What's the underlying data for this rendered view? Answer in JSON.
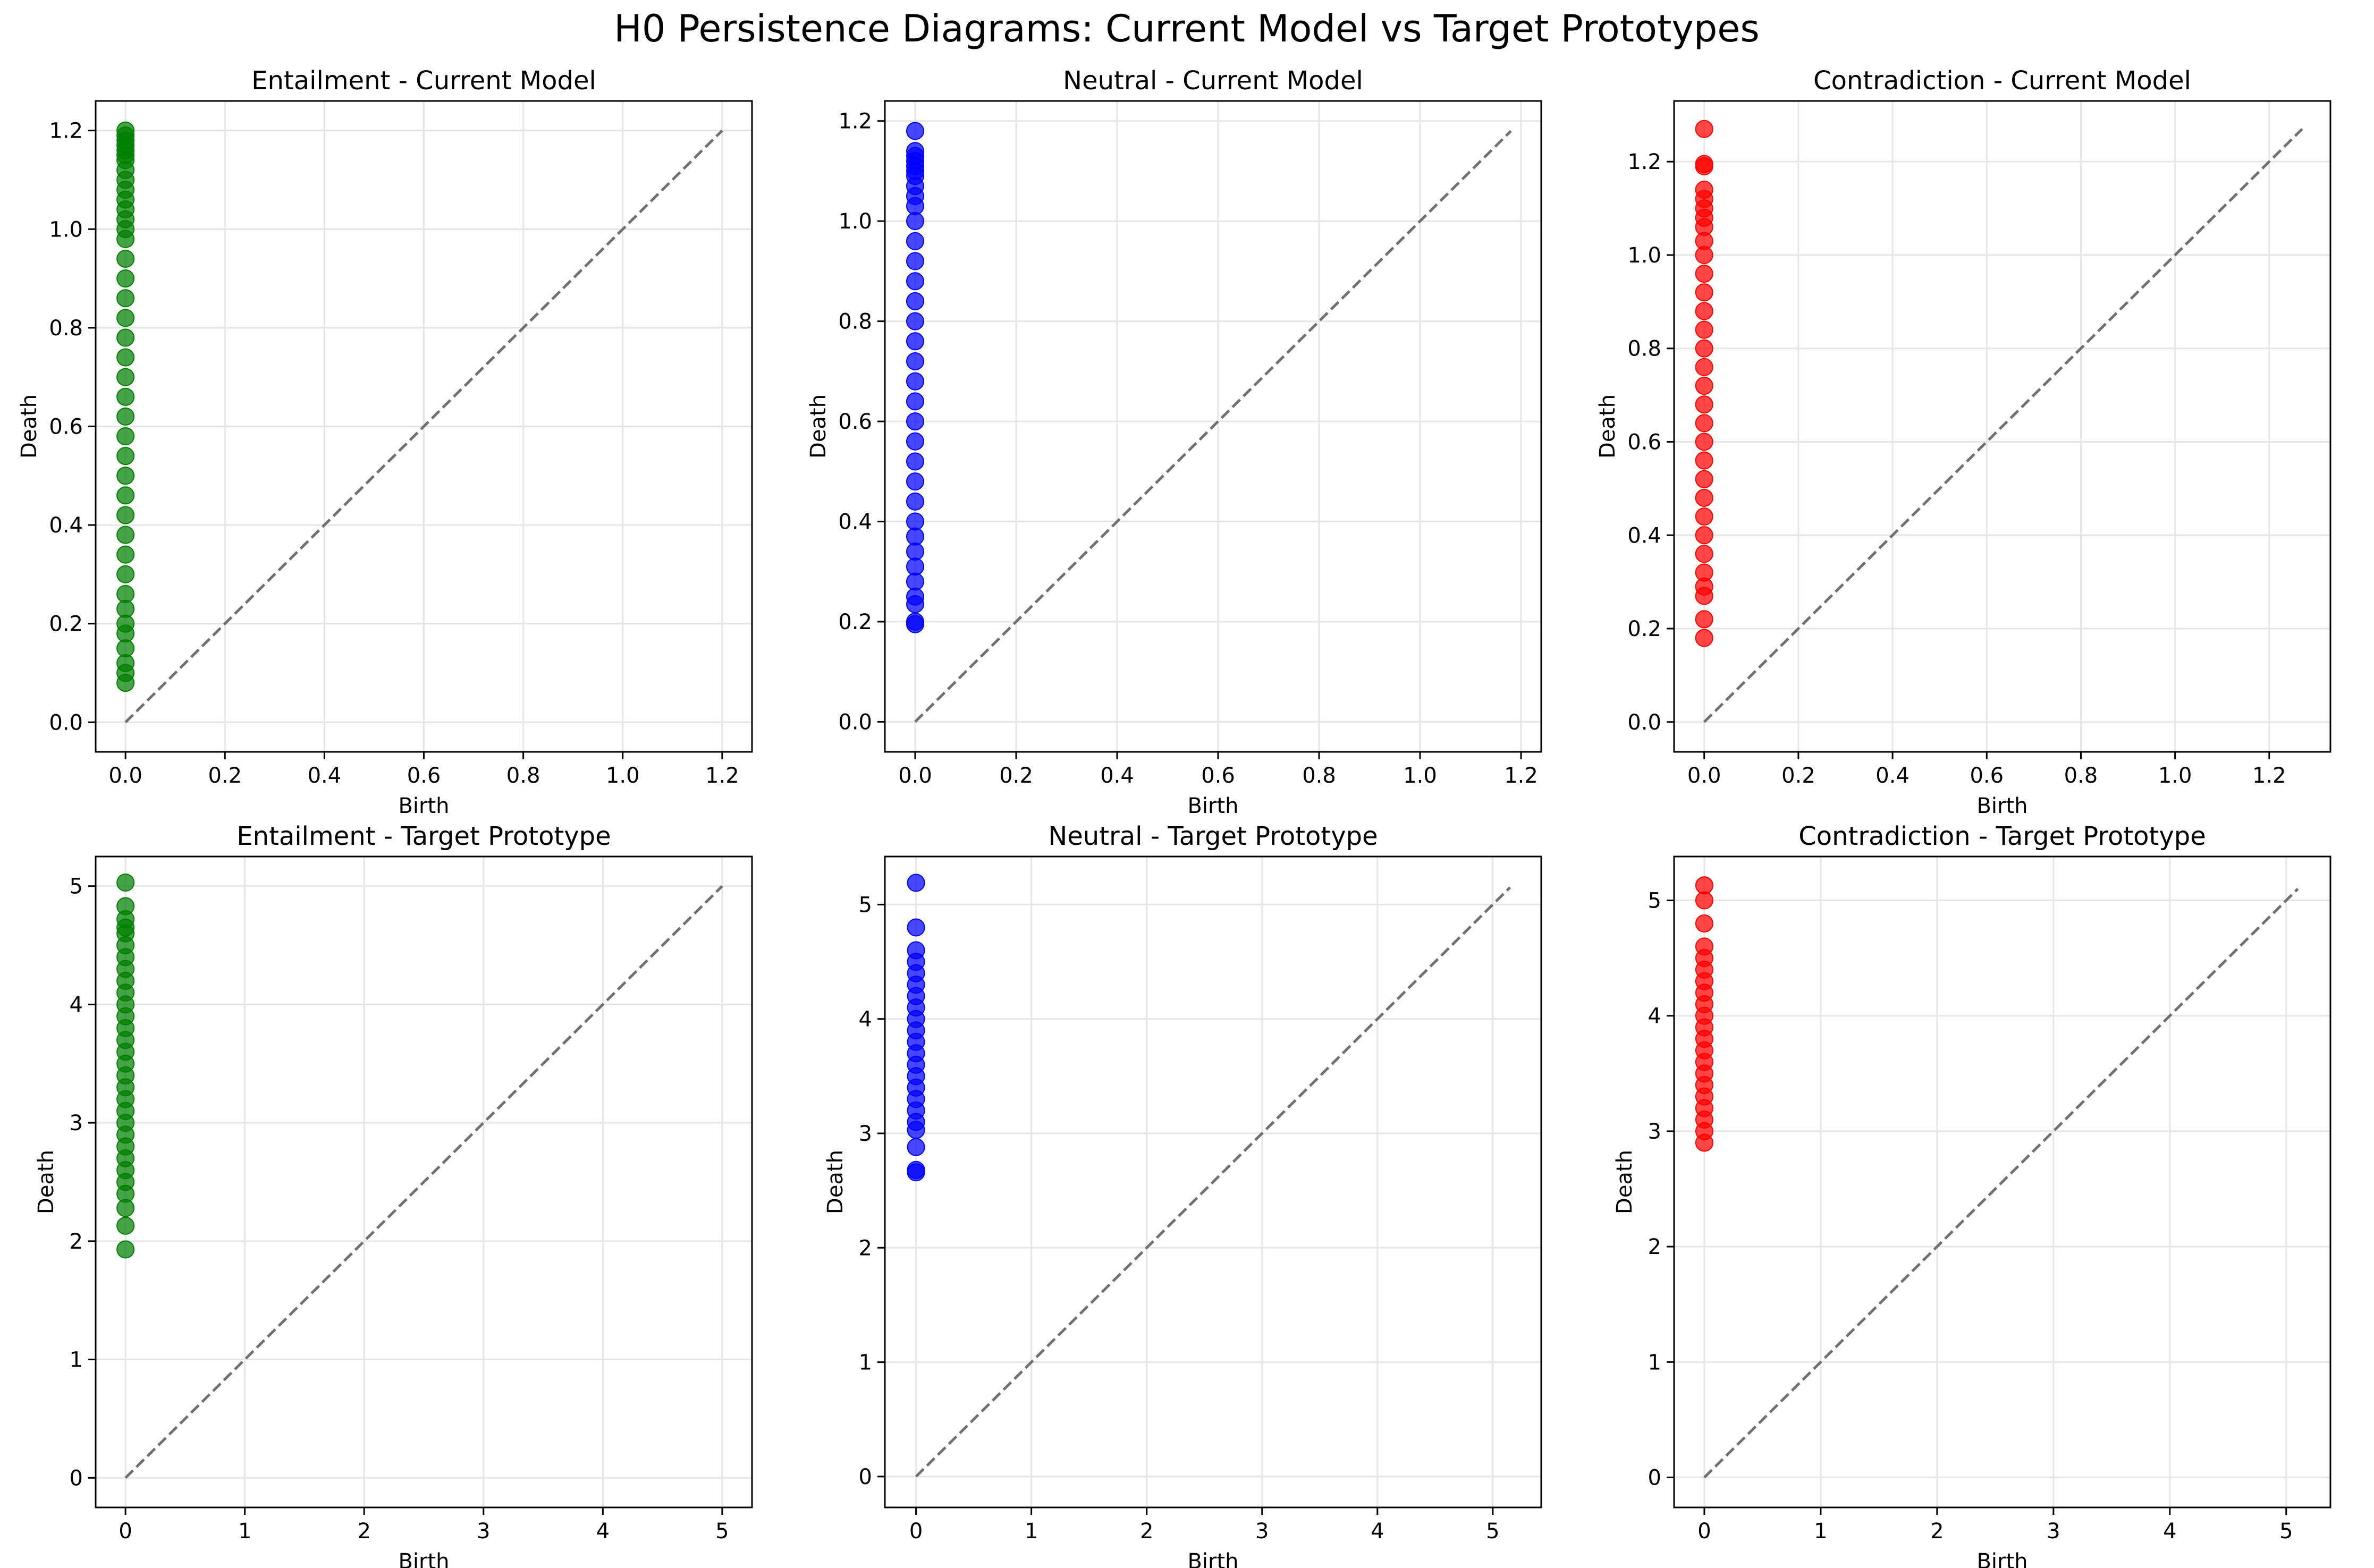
{
  "figure_title": "H0 Persistence Diagrams: Current Model vs Target Prototypes",
  "colors": {
    "entailment": "#008000",
    "neutral": "#0000ff",
    "contradiction": "#ff0000",
    "diagonal": "#707070",
    "grid": "#e6e6e6"
  },
  "chart_data": [
    {
      "type": "scatter",
      "title": "Entailment - Current Model",
      "xlabel": "Birth",
      "ylabel": "Death",
      "color_key": "entailment",
      "xlim": [
        -0.06,
        1.26
      ],
      "ylim": [
        -0.06,
        1.26
      ],
      "xticks": [
        0.0,
        0.2,
        0.4,
        0.6,
        0.8,
        1.0,
        1.2
      ],
      "yticks": [
        0.0,
        0.2,
        0.4,
        0.6,
        0.8,
        1.0,
        1.2
      ],
      "tick_decimals": 1,
      "grid": true,
      "diagonal_max": 1.2,
      "series": [
        {
          "x": [
            0,
            0,
            0,
            0,
            0,
            0,
            0,
            0,
            0,
            0,
            0,
            0,
            0,
            0,
            0,
            0,
            0,
            0,
            0,
            0,
            0,
            0,
            0,
            0,
            0,
            0,
            0,
            0,
            0,
            0,
            0,
            0,
            0,
            0,
            0,
            0,
            0,
            0,
            0,
            0
          ],
          "y": [
            0.08,
            0.1,
            0.12,
            0.15,
            0.18,
            0.2,
            0.23,
            0.26,
            0.3,
            0.34,
            0.38,
            0.42,
            0.46,
            0.5,
            0.54,
            0.58,
            0.62,
            0.66,
            0.7,
            0.74,
            0.78,
            0.82,
            0.86,
            0.9,
            0.94,
            0.98,
            1.0,
            1.02,
            1.04,
            1.06,
            1.08,
            1.1,
            1.12,
            1.14,
            1.15,
            1.16,
            1.17,
            1.18,
            1.19,
            1.2
          ]
        }
      ]
    },
    {
      "type": "scatter",
      "title": "Neutral - Current Model",
      "xlabel": "Birth",
      "ylabel": "Death",
      "color_key": "neutral",
      "xlim": [
        -0.06,
        1.24
      ],
      "ylim": [
        -0.06,
        1.24
      ],
      "xticks": [
        0.0,
        0.2,
        0.4,
        0.6,
        0.8,
        1.0,
        1.2
      ],
      "yticks": [
        0.0,
        0.2,
        0.4,
        0.6,
        0.8,
        1.0,
        1.2
      ],
      "tick_decimals": 1,
      "grid": true,
      "diagonal_max": 1.18,
      "series": [
        {
          "x": [
            0,
            0,
            0,
            0,
            0,
            0,
            0,
            0,
            0,
            0,
            0,
            0,
            0,
            0,
            0,
            0,
            0,
            0,
            0,
            0,
            0,
            0,
            0,
            0,
            0,
            0,
            0,
            0,
            0,
            0,
            0,
            0,
            0,
            0
          ],
          "y": [
            0.195,
            0.2,
            0.235,
            0.25,
            0.28,
            0.31,
            0.34,
            0.37,
            0.4,
            0.44,
            0.48,
            0.52,
            0.56,
            0.6,
            0.64,
            0.68,
            0.72,
            0.76,
            0.8,
            0.84,
            0.88,
            0.92,
            0.96,
            1.0,
            1.03,
            1.05,
            1.07,
            1.09,
            1.1,
            1.11,
            1.12,
            1.13,
            1.14,
            1.18
          ]
        }
      ]
    },
    {
      "type": "scatter",
      "title": "Contradiction - Current Model",
      "xlabel": "Birth",
      "ylabel": "Death",
      "color_key": "contradiction",
      "xlim": [
        -0.064,
        1.33
      ],
      "ylim": [
        -0.064,
        1.33
      ],
      "xticks": [
        0.0,
        0.2,
        0.4,
        0.6,
        0.8,
        1.0,
        1.2
      ],
      "yticks": [
        0.0,
        0.2,
        0.4,
        0.6,
        0.8,
        1.0,
        1.2
      ],
      "tick_decimals": 1,
      "grid": true,
      "diagonal_max": 1.27,
      "series": [
        {
          "x": [
            0,
            0,
            0,
            0,
            0,
            0,
            0,
            0,
            0,
            0,
            0,
            0,
            0,
            0,
            0,
            0,
            0,
            0,
            0,
            0,
            0,
            0,
            0,
            0,
            0,
            0,
            0,
            0,
            0,
            0,
            0
          ],
          "y": [
            0.18,
            0.22,
            0.27,
            0.29,
            0.32,
            0.36,
            0.4,
            0.44,
            0.48,
            0.52,
            0.56,
            0.6,
            0.64,
            0.68,
            0.72,
            0.76,
            0.8,
            0.84,
            0.88,
            0.92,
            0.96,
            1.0,
            1.03,
            1.06,
            1.08,
            1.1,
            1.12,
            1.14,
            1.19,
            1.195,
            1.27
          ]
        }
      ]
    },
    {
      "type": "scatter",
      "title": "Entailment - Target Prototype",
      "xlabel": "Birth",
      "ylabel": "Death",
      "color_key": "entailment",
      "xlim": [
        -0.25,
        5.25
      ],
      "ylim": [
        -0.25,
        5.25
      ],
      "xticks": [
        0,
        1,
        2,
        3,
        4,
        5
      ],
      "yticks": [
        0,
        1,
        2,
        3,
        4,
        5
      ],
      "tick_decimals": 0,
      "grid": true,
      "diagonal_max": 5.0,
      "series": [
        {
          "x": [
            0,
            0,
            0,
            0,
            0,
            0,
            0,
            0,
            0,
            0,
            0,
            0,
            0,
            0,
            0,
            0,
            0,
            0,
            0,
            0,
            0,
            0,
            0,
            0,
            0,
            0,
            0,
            0,
            0,
            0
          ],
          "y": [
            1.93,
            2.13,
            2.28,
            2.4,
            2.5,
            2.6,
            2.7,
            2.8,
            2.9,
            3.0,
            3.1,
            3.2,
            3.3,
            3.4,
            3.5,
            3.6,
            3.7,
            3.8,
            3.9,
            4.0,
            4.1,
            4.2,
            4.3,
            4.4,
            4.5,
            4.6,
            4.65,
            4.72,
            4.83,
            5.03
          ]
        }
      ]
    },
    {
      "type": "scatter",
      "title": "Neutral - Target Prototype",
      "xlabel": "Birth",
      "ylabel": "Death",
      "color_key": "neutral",
      "xlim": [
        -0.27,
        5.42
      ],
      "ylim": [
        -0.27,
        5.42
      ],
      "xticks": [
        0,
        1,
        2,
        3,
        4,
        5
      ],
      "yticks": [
        0,
        1,
        2,
        3,
        4,
        5
      ],
      "tick_decimals": 0,
      "grid": true,
      "diagonal_max": 5.15,
      "series": [
        {
          "x": [
            0,
            0,
            0,
            0,
            0,
            0,
            0,
            0,
            0,
            0,
            0,
            0,
            0,
            0,
            0,
            0,
            0,
            0,
            0,
            0,
            0,
            0
          ],
          "y": [
            2.66,
            2.68,
            2.88,
            3.03,
            3.1,
            3.2,
            3.3,
            3.4,
            3.5,
            3.6,
            3.7,
            3.8,
            3.9,
            4.0,
            4.1,
            4.2,
            4.3,
            4.4,
            4.5,
            4.6,
            4.8,
            5.19
          ]
        }
      ]
    },
    {
      "type": "scatter",
      "title": "Contradiction - Target Prototype",
      "xlabel": "Birth",
      "ylabel": "Death",
      "color_key": "contradiction",
      "xlim": [
        -0.26,
        5.38
      ],
      "ylim": [
        -0.26,
        5.38
      ],
      "xticks": [
        0,
        1,
        2,
        3,
        4,
        5
      ],
      "yticks": [
        0,
        1,
        2,
        3,
        4,
        5
      ],
      "tick_decimals": 0,
      "grid": true,
      "diagonal_max": 5.1,
      "series": [
        {
          "x": [
            0,
            0,
            0,
            0,
            0,
            0,
            0,
            0,
            0,
            0,
            0,
            0,
            0,
            0,
            0,
            0,
            0,
            0,
            0,
            0,
            0
          ],
          "y": [
            2.9,
            3.0,
            3.1,
            3.2,
            3.3,
            3.4,
            3.5,
            3.6,
            3.7,
            3.8,
            3.9,
            4.0,
            4.1,
            4.2,
            4.3,
            4.4,
            4.5,
            4.6,
            4.8,
            5.0,
            5.13
          ]
        }
      ]
    }
  ]
}
